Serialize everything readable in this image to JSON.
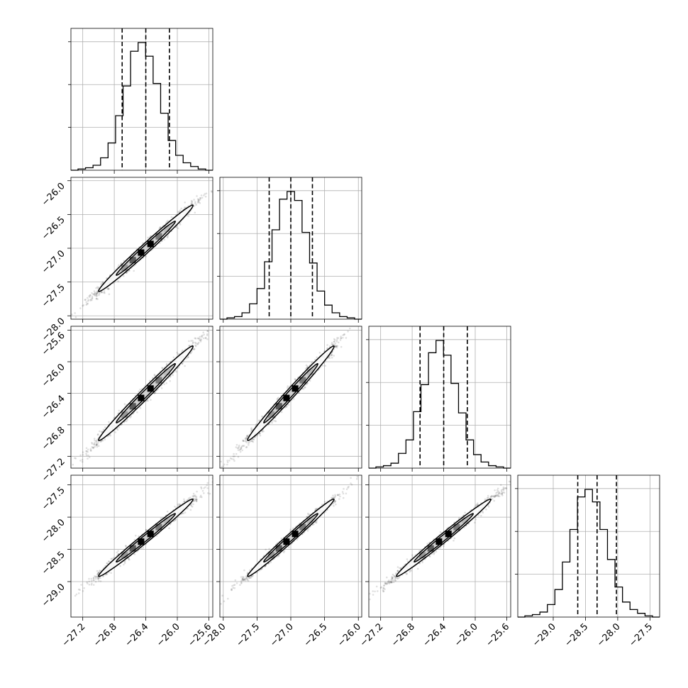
{
  "chart_data": {
    "type": "corner",
    "title": "",
    "parameters": [
      {
        "range": [
          -27.35,
          -25.55
        ],
        "ticks": [
          -27.2,
          -26.8,
          -26.4,
          -26.0,
          -25.6
        ],
        "tick_labels": [
          "−27.2",
          "−26.8",
          "−26.4",
          "−26.0",
          "−25.6"
        ],
        "quantiles": [
          -26.7,
          -26.4,
          -26.1
        ]
      },
      {
        "range": [
          -28.05,
          -25.95
        ],
        "ticks": [
          -28.0,
          -27.5,
          -27.0,
          -26.5,
          -26.0
        ],
        "tick_labels": [
          "−28.0",
          "−27.5",
          "−27.0",
          "−26.5",
          "−26.0"
        ],
        "quantiles": [
          -27.32,
          -27.0,
          -26.68
        ]
      },
      {
        "range": [
          -27.35,
          -25.55
        ],
        "ticks": [
          -27.2,
          -26.8,
          -26.4,
          -26.0,
          -25.6
        ],
        "tick_labels": [
          "−27.2",
          "−26.8",
          "−26.4",
          "−26.0",
          "−25.6"
        ],
        "quantiles": [
          -26.7,
          -26.4,
          -26.1
        ]
      },
      {
        "range": [
          -29.55,
          -27.35
        ],
        "ticks": [
          -29.0,
          -28.5,
          -28.0,
          -27.5
        ],
        "tick_labels": [
          "−29.0",
          "−28.5",
          "−28.0",
          "−27.5"
        ],
        "quantiles": [
          -28.62,
          -28.32,
          -28.02
        ]
      }
    ],
    "histograms": [
      {
        "counts": [
          1,
          2,
          4,
          10,
          22,
          44,
          68,
          96,
          103,
          92,
          70,
          46,
          24,
          12,
          6,
          3,
          1
        ]
      },
      {
        "counts": [
          1,
          2,
          5,
          12,
          24,
          45,
          70,
          94,
          100,
          93,
          68,
          44,
          22,
          11,
          5,
          2,
          1
        ]
      },
      {
        "counts": [
          1,
          2,
          4,
          12,
          23,
          46,
          68,
          94,
          104,
          92,
          69,
          45,
          23,
          11,
          5,
          2,
          1
        ]
      },
      {
        "counts": [
          1,
          2,
          4,
          10,
          22,
          44,
          70,
          96,
          102,
          92,
          70,
          46,
          24,
          12,
          6,
          3,
          1
        ]
      }
    ],
    "hist_grid_fractions": [
      0.33,
      0.66,
      0.99
    ],
    "correlation": 0.99,
    "grid": true,
    "contour_levels": 2
  }
}
